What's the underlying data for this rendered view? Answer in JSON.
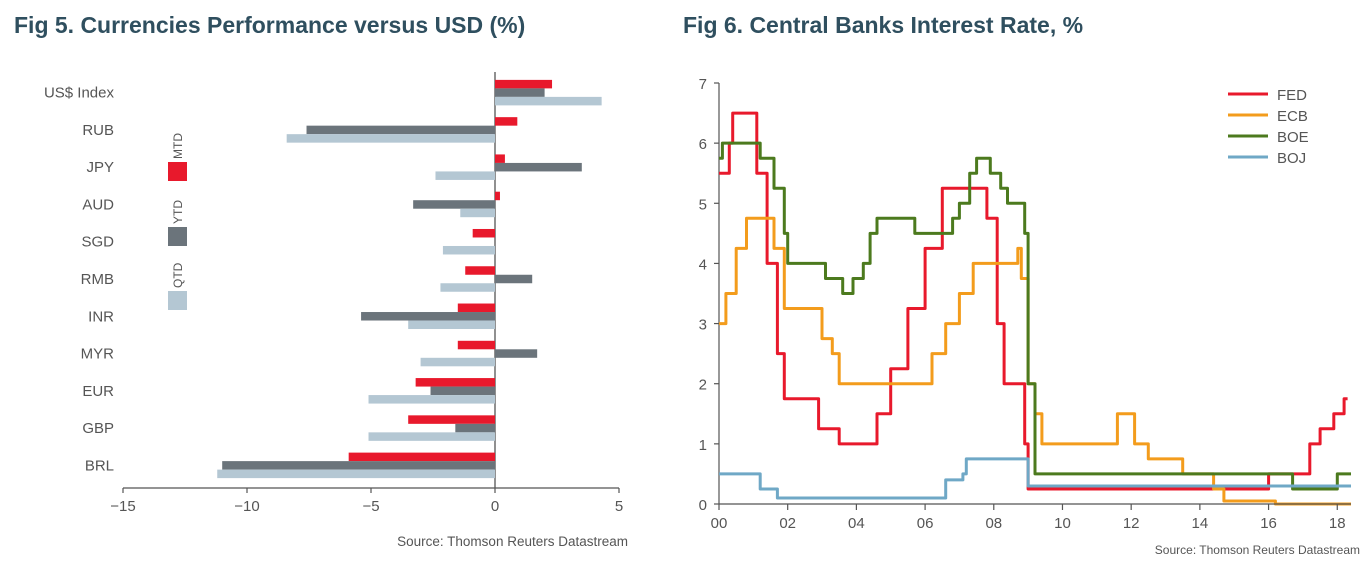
{
  "chart_data": [
    {
      "type": "bar",
      "orientation": "horizontal",
      "title": "Fig 5. Currencies Performance versus USD (%)",
      "source": "Source: Thomson Reuters Datastream",
      "categories": [
        "US$ Index",
        "RUB",
        "JPY",
        "AUD",
        "SGD",
        "RMB",
        "INR",
        "MYR",
        "EUR",
        "GBP",
        "BRL"
      ],
      "xlim": [
        -15,
        5
      ],
      "xticks": [
        -15,
        -10,
        -5,
        0,
        5
      ],
      "xtick_labels": [
        "−15",
        "−10",
        "−5",
        "0",
        "5"
      ],
      "legend_placement": "left, vertical",
      "series": [
        {
          "name": "MTD",
          "color": "#e8192c",
          "values": [
            2.3,
            0.9,
            0.4,
            0.2,
            -0.9,
            -1.2,
            -1.5,
            -1.5,
            -3.2,
            -3.5,
            -5.9
          ]
        },
        {
          "name": "YTD",
          "color": "#6b747b",
          "values": [
            2.0,
            -7.6,
            3.5,
            -3.3,
            0.0,
            1.5,
            -5.4,
            1.7,
            -2.6,
            -1.6,
            -11.0
          ]
        },
        {
          "name": "QTD",
          "color": "#b4c7d3",
          "values": [
            4.3,
            -8.4,
            -2.4,
            -1.4,
            -2.1,
            -2.2,
            -3.5,
            -3.0,
            -5.1,
            -5.1,
            -11.2
          ]
        }
      ]
    },
    {
      "type": "line",
      "title": "Fig 6. Central Banks Interest Rate, %",
      "source": "Source: Thomson Reuters Datastream",
      "ylim": [
        0,
        7
      ],
      "yticks": [
        0,
        1,
        2,
        3,
        4,
        5,
        6,
        7
      ],
      "xlim": [
        2000,
        2018.4
      ],
      "xticks": [
        2000,
        2002,
        2004,
        2006,
        2008,
        2010,
        2012,
        2014,
        2016,
        2018
      ],
      "xtick_labels": [
        "00",
        "02",
        "04",
        "06",
        "08",
        "10",
        "12",
        "14",
        "16",
        "18"
      ],
      "legend_placement": "top-right",
      "series": [
        {
          "name": "FED",
          "color": "#e8192c",
          "points": [
            [
              2000.0,
              5.5
            ],
            [
              2000.3,
              6.0
            ],
            [
              2000.4,
              6.5
            ],
            [
              2001.0,
              6.5
            ],
            [
              2001.1,
              5.5
            ],
            [
              2001.4,
              4.0
            ],
            [
              2001.7,
              2.5
            ],
            [
              2001.9,
              1.75
            ],
            [
              2002.8,
              1.75
            ],
            [
              2002.9,
              1.25
            ],
            [
              2003.5,
              1.0
            ],
            [
              2004.4,
              1.0
            ],
            [
              2004.6,
              1.5
            ],
            [
              2005.0,
              2.25
            ],
            [
              2005.5,
              3.25
            ],
            [
              2006.0,
              4.25
            ],
            [
              2006.5,
              5.25
            ],
            [
              2007.6,
              5.25
            ],
            [
              2007.8,
              4.75
            ],
            [
              2008.1,
              3.0
            ],
            [
              2008.3,
              2.0
            ],
            [
              2008.8,
              2.0
            ],
            [
              2008.9,
              1.0
            ],
            [
              2009.0,
              0.25
            ],
            [
              2015.9,
              0.25
            ],
            [
              2016.0,
              0.5
            ],
            [
              2016.9,
              0.5
            ],
            [
              2017.2,
              1.0
            ],
            [
              2017.5,
              1.25
            ],
            [
              2017.9,
              1.5
            ],
            [
              2018.2,
              1.75
            ],
            [
              2018.3,
              1.75
            ]
          ]
        },
        {
          "name": "ECB",
          "color": "#f39c1c",
          "points": [
            [
              2000.0,
              3.0
            ],
            [
              2000.2,
              3.5
            ],
            [
              2000.5,
              4.25
            ],
            [
              2000.8,
              4.75
            ],
            [
              2001.3,
              4.75
            ],
            [
              2001.6,
              4.25
            ],
            [
              2001.9,
              3.25
            ],
            [
              2002.9,
              3.25
            ],
            [
              2003.0,
              2.75
            ],
            [
              2003.3,
              2.5
            ],
            [
              2003.5,
              2.0
            ],
            [
              2005.9,
              2.0
            ],
            [
              2006.2,
              2.5
            ],
            [
              2006.6,
              3.0
            ],
            [
              2007.0,
              3.5
            ],
            [
              2007.4,
              4.0
            ],
            [
              2008.5,
              4.0
            ],
            [
              2008.7,
              4.25
            ],
            [
              2008.8,
              3.75
            ],
            [
              2009.0,
              2.0
            ],
            [
              2009.2,
              1.5
            ],
            [
              2009.4,
              1.0
            ],
            [
              2011.3,
              1.0
            ],
            [
              2011.6,
              1.5
            ],
            [
              2011.8,
              1.5
            ],
            [
              2012.1,
              1.0
            ],
            [
              2012.5,
              0.75
            ],
            [
              2013.3,
              0.75
            ],
            [
              2013.5,
              0.5
            ],
            [
              2014.4,
              0.25
            ],
            [
              2014.7,
              0.05
            ],
            [
              2016.2,
              0.0
            ],
            [
              2018.4,
              0.0
            ]
          ]
        },
        {
          "name": "BOE",
          "color": "#4c7a1e",
          "points": [
            [
              2000.0,
              5.75
            ],
            [
              2000.1,
              6.0
            ],
            [
              2001.0,
              6.0
            ],
            [
              2001.2,
              5.75
            ],
            [
              2001.6,
              5.25
            ],
            [
              2001.9,
              4.5
            ],
            [
              2002.0,
              4.0
            ],
            [
              2003.0,
              4.0
            ],
            [
              2003.1,
              3.75
            ],
            [
              2003.6,
              3.5
            ],
            [
              2003.9,
              3.75
            ],
            [
              2004.2,
              4.0
            ],
            [
              2004.4,
              4.5
            ],
            [
              2004.6,
              4.75
            ],
            [
              2005.6,
              4.75
            ],
            [
              2005.7,
              4.5
            ],
            [
              2006.6,
              4.5
            ],
            [
              2006.8,
              4.75
            ],
            [
              2007.0,
              5.0
            ],
            [
              2007.3,
              5.5
            ],
            [
              2007.5,
              5.75
            ],
            [
              2007.9,
              5.5
            ],
            [
              2008.2,
              5.25
            ],
            [
              2008.4,
              5.0
            ],
            [
              2008.8,
              5.0
            ],
            [
              2008.9,
              4.5
            ],
            [
              2009.0,
              2.0
            ],
            [
              2009.2,
              0.5
            ],
            [
              2016.5,
              0.5
            ],
            [
              2016.7,
              0.25
            ],
            [
              2017.9,
              0.25
            ],
            [
              2018.0,
              0.5
            ],
            [
              2018.4,
              0.5
            ]
          ]
        },
        {
          "name": "BOJ",
          "color": "#6fa8c6",
          "points": [
            [
              2000.0,
              0.5
            ],
            [
              2001.0,
              0.5
            ],
            [
              2001.2,
              0.25
            ],
            [
              2001.7,
              0.1
            ],
            [
              2006.5,
              0.1
            ],
            [
              2006.6,
              0.4
            ],
            [
              2007.1,
              0.5
            ],
            [
              2007.2,
              0.75
            ],
            [
              2008.8,
              0.75
            ],
            [
              2009.0,
              0.3
            ],
            [
              2009.1,
              0.3
            ],
            [
              2018.4,
              0.3
            ]
          ]
        }
      ]
    }
  ]
}
